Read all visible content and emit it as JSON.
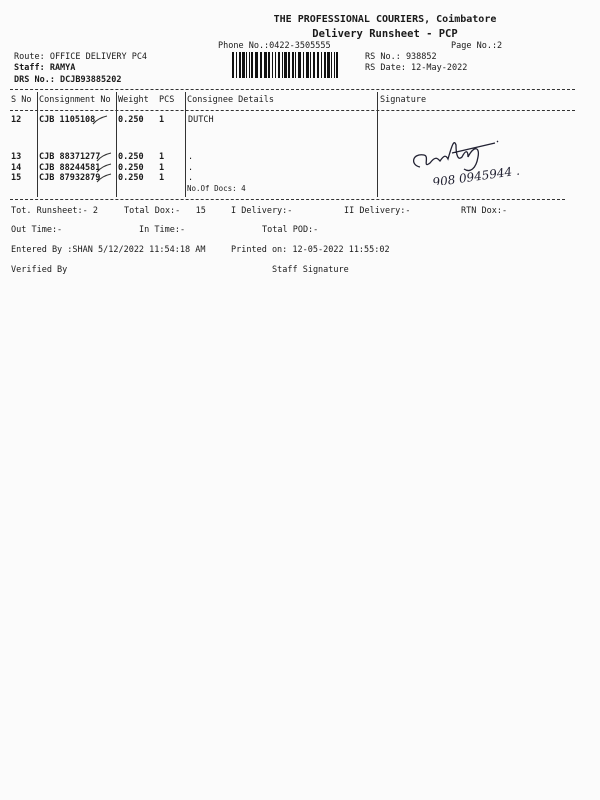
{
  "header": {
    "company": "THE PROFESSIONAL COURIERS, Coimbatore",
    "doc_title": "Delivery Runsheet - PCP",
    "phone": "Phone No.:0422-3505555",
    "page_no": "Page No.:2",
    "route": "Route: OFFICE DELIVERY PC4",
    "staff": "Staff: RAMYA",
    "drs_no": "DRS No.: DCJB93885202",
    "rs_no": "RS No.: 938852",
    "rs_date": "RS Date: 12-May-2022"
  },
  "table": {
    "columns": [
      "S No",
      "Consignment No",
      "Weight",
      "PCS",
      "Consignee Details",
      "Signature"
    ],
    "rows": [
      {
        "sno": "12",
        "consignment": "CJB 1105108",
        "weight": "0.250",
        "pcs": "1",
        "details": "DUTCH"
      },
      {
        "sno": "13",
        "consignment": "CJB 88371277",
        "weight": "0.250",
        "pcs": "1",
        "details": "."
      },
      {
        "sno": "14",
        "consignment": "CJB 88244581",
        "weight": "0.250",
        "pcs": "1",
        "details": "."
      },
      {
        "sno": "15",
        "consignment": "CJB 87932879",
        "weight": "0.250",
        "pcs": "1",
        "details": "."
      }
    ],
    "no_of_docs": "No.Of Docs: 4",
    "signature_handwriting": "908 0945944"
  },
  "totals": {
    "tot_runsheet": "Tot. Runsheet:- 2",
    "total_dox": "Total Dox:-   15",
    "i_delivery": "I Delivery:-",
    "ii_delivery": "II Delivery:-",
    "rtn_dox": "RTN Dox:-",
    "out_time": "Out Time:-",
    "in_time": "In Time:-",
    "total_pod": "Total POD:-"
  },
  "footer": {
    "entered_by": "Entered By :SHAN 5/12/2022 11:54:18 AM",
    "printed_on": "Printed on: 12-05-2022 11:55:02",
    "verified_by": "Verified By",
    "staff_signature": "Staff Signature"
  }
}
